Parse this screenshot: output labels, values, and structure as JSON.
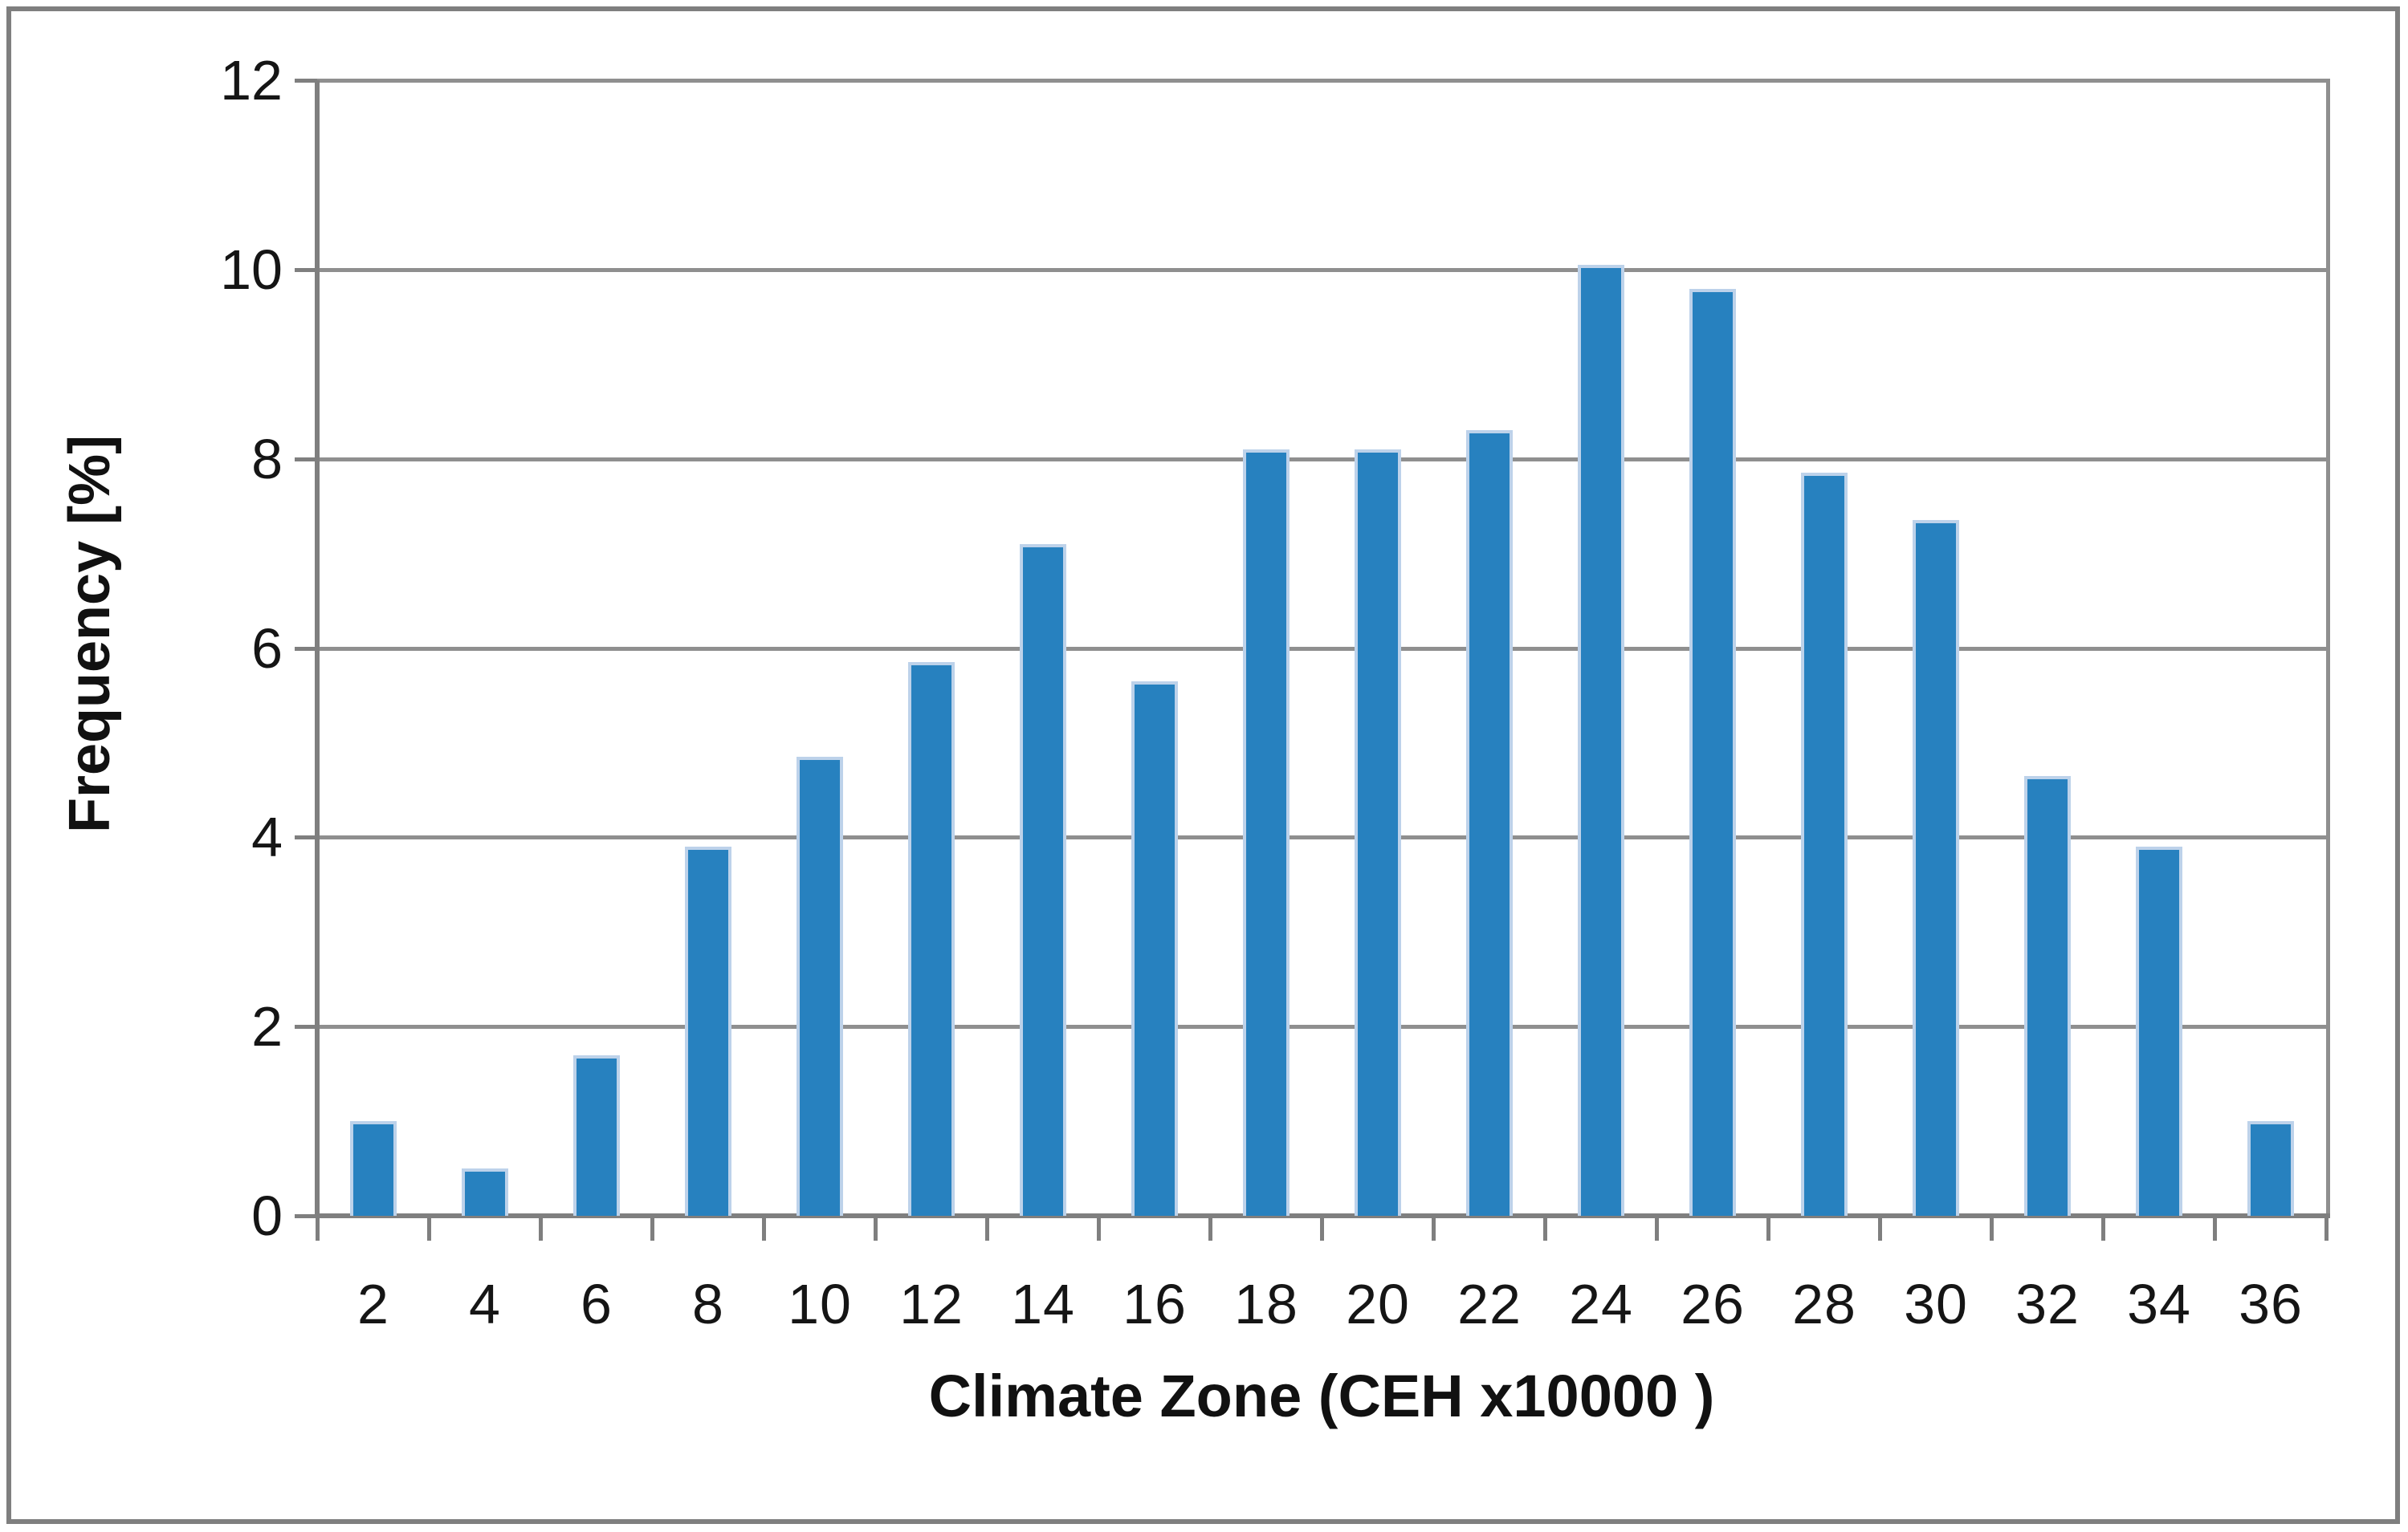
{
  "page": {
    "background": "#ffffff",
    "outer_border_color": "#7f7f7f"
  },
  "chart_data": {
    "type": "bar",
    "title": "",
    "xlabel": "Climate Zone (CEH x10000 )",
    "ylabel": "Frequency [%]",
    "categories": [
      "2",
      "4",
      "6",
      "8",
      "10",
      "12",
      "14",
      "16",
      "18",
      "20",
      "22",
      "24",
      "26",
      "28",
      "30",
      "32",
      "34",
      "36"
    ],
    "values": [
      1.0,
      0.5,
      1.7,
      3.9,
      4.85,
      5.85,
      7.1,
      5.65,
      8.1,
      8.1,
      8.3,
      10.05,
      9.8,
      7.85,
      7.35,
      4.65,
      3.9,
      1.0
    ],
    "ylim": [
      0,
      12
    ],
    "yticks": [
      "0",
      "2",
      "4",
      "6",
      "8",
      "10",
      "12"
    ],
    "ytick_values": [
      0,
      2,
      4,
      6,
      8,
      10,
      12
    ],
    "grid": "horizontal-only",
    "legend_position": "none",
    "bar_color": "#2781BF",
    "bar_edge_color": "#BDD2EA",
    "gridline_color": "#8F8F8F",
    "axis_color": "#7F7F7F",
    "text_color": "#151515"
  }
}
